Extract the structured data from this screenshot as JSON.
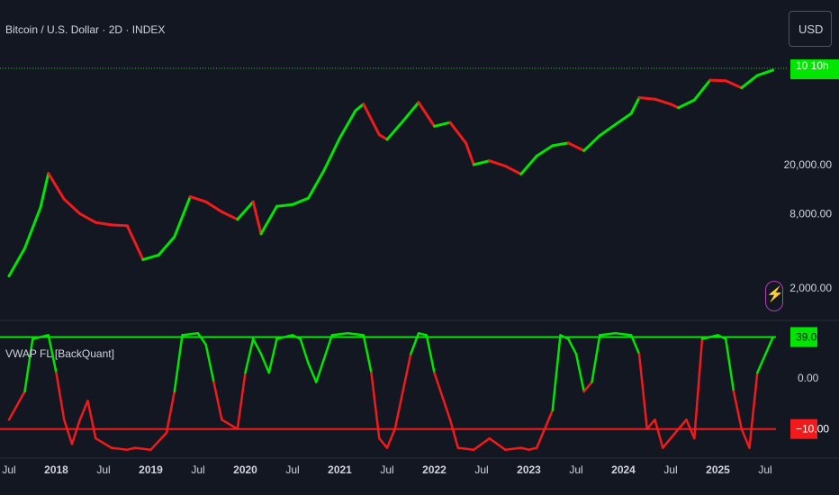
{
  "header": {
    "title": "Bitcoin / U.S. Dollar · 2D · INDEX",
    "currency": "USD",
    "price_badge": "10 10h"
  },
  "indicator": {
    "title": "VWAP FL [BackQuant]",
    "upper_level": 39.0,
    "lower_level": -10.0,
    "upper_label": "39.00",
    "lower_label": "−10.00",
    "mid_label": "0.00"
  },
  "colors": {
    "background": "#131722",
    "bull": "#00e600",
    "bear": "#f21a1a",
    "text": "#d1d4dc",
    "purple": "#b03db8"
  },
  "icons": {
    "alert": "lightning-bolt-icon"
  },
  "chart_data": [
    {
      "type": "line",
      "title": "Bitcoin / U.S. Dollar · 2D · INDEX",
      "y_scale": "log",
      "y_ticks": [
        "20,000.00",
        "8,000.00",
        "2,000.00"
      ],
      "y_tick_values": [
        20000,
        8000,
        2000
      ],
      "x_tick_labels": [
        "Jul",
        "2018",
        "Jul",
        "2019",
        "Jul",
        "2020",
        "Jul",
        "2021",
        "Jul",
        "2022",
        "Jul",
        "2023",
        "Jul",
        "2024",
        "Jul",
        "2025",
        "Jul"
      ],
      "x_tick_dates": [
        "2017-07",
        "2018-01",
        "2018-07",
        "2019-01",
        "2019-07",
        "2020-01",
        "2020-07",
        "2021-01",
        "2021-07",
        "2022-01",
        "2022-07",
        "2023-01",
        "2023-07",
        "2024-01",
        "2024-07",
        "2025-01",
        "2025-07"
      ],
      "series": [
        {
          "x": [
            "2017-07",
            "2017-09",
            "2017-11",
            "2017-12",
            "2018-02",
            "2018-04",
            "2018-06",
            "2018-08",
            "2018-10",
            "2018-12",
            "2019-02",
            "2019-04",
            "2019-06",
            "2019-08",
            "2019-10",
            "2019-12",
            "2020-02",
            "2020-03",
            "2020-05",
            "2020-07",
            "2020-09",
            "2020-11",
            "2021-01",
            "2021-03",
            "2021-04",
            "2021-06",
            "2021-07",
            "2021-09",
            "2021-11",
            "2022-01",
            "2022-03",
            "2022-05",
            "2022-06",
            "2022-08",
            "2022-10",
            "2022-12",
            "2023-02",
            "2023-04",
            "2023-06",
            "2023-08",
            "2023-10",
            "2023-12",
            "2024-02",
            "2024-03",
            "2024-05",
            "2024-07",
            "2024-08",
            "2024-10",
            "2024-12",
            "2025-02",
            "2025-04",
            "2025-06",
            "2025-08"
          ],
          "values": [
            2500,
            4200,
            9000,
            17000,
            10500,
            8000,
            6800,
            6500,
            6400,
            3400,
            3700,
            5200,
            11000,
            10000,
            8300,
            7200,
            10000,
            5500,
            9200,
            9500,
            10700,
            18000,
            33000,
            55000,
            62000,
            35000,
            32000,
            45000,
            64000,
            41000,
            44000,
            30000,
            20000,
            21500,
            19500,
            16800,
            23500,
            28500,
            30000,
            26000,
            34500,
            42500,
            52000,
            70000,
            68000,
            62000,
            58000,
            67000,
            97000,
            96000,
            84000,
            106000,
            117000
          ],
          "color_by_regime": true
        }
      ]
    },
    {
      "type": "line",
      "title": "VWAP FL [BackQuant]",
      "levels": [
        39.0,
        -10.0
      ],
      "ylim": [
        -25,
        45
      ],
      "series": [
        {
          "name": "VWAP FL [BackQuant]",
          "x": [
            "2017-07",
            "2017-09",
            "2017-10",
            "2017-12",
            "2018-01",
            "2018-02",
            "2018-03",
            "2018-04",
            "2018-05",
            "2018-06",
            "2018-08",
            "2018-10",
            "2018-11",
            "2019-01",
            "2019-03",
            "2019-04",
            "2019-05",
            "2019-07",
            "2019-08",
            "2019-09",
            "2019-10",
            "2019-12",
            "2020-01",
            "2020-02",
            "2020-03",
            "2020-04",
            "2020-05",
            "2020-07",
            "2020-08",
            "2020-09",
            "2020-10",
            "2020-12",
            "2021-02",
            "2021-04",
            "2021-05",
            "2021-06",
            "2021-07",
            "2021-08",
            "2021-10",
            "2021-11",
            "2021-12",
            "2022-01",
            "2022-03",
            "2022-04",
            "2022-06",
            "2022-08",
            "2022-10",
            "2022-12",
            "2023-01",
            "2023-02",
            "2023-04",
            "2023-05",
            "2023-06",
            "2023-07",
            "2023-08",
            "2023-09",
            "2023-10",
            "2023-12",
            "2024-02",
            "2024-03",
            "2024-04",
            "2024-05",
            "2024-06",
            "2024-07",
            "2024-08",
            "2024-09",
            "2024-10",
            "2024-11",
            "2025-01",
            "2025-02",
            "2025-03",
            "2025-04",
            "2025-05",
            "2025-06",
            "2025-08"
          ],
          "values": [
            -5,
            10,
            38,
            40,
            20,
            -5,
            -18,
            -5,
            5,
            -15,
            -20,
            -21,
            -20,
            -21,
            -12,
            10,
            40,
            41,
            35,
            15,
            -5,
            -10,
            20,
            38,
            30,
            20,
            38,
            40,
            38,
            25,
            15,
            40,
            41,
            40,
            20,
            -15,
            -20,
            -10,
            30,
            41,
            40,
            20,
            -5,
            -20,
            -21,
            -15,
            -21,
            -20,
            -21,
            -20,
            0,
            40,
            38,
            30,
            10,
            15,
            40,
            41,
            40,
            30,
            -10,
            -5,
            -20,
            -15,
            -10,
            -5,
            -15,
            38,
            40,
            38,
            10,
            -10,
            -20,
            20,
            39
          ],
          "color_by_regime": true
        }
      ]
    }
  ]
}
